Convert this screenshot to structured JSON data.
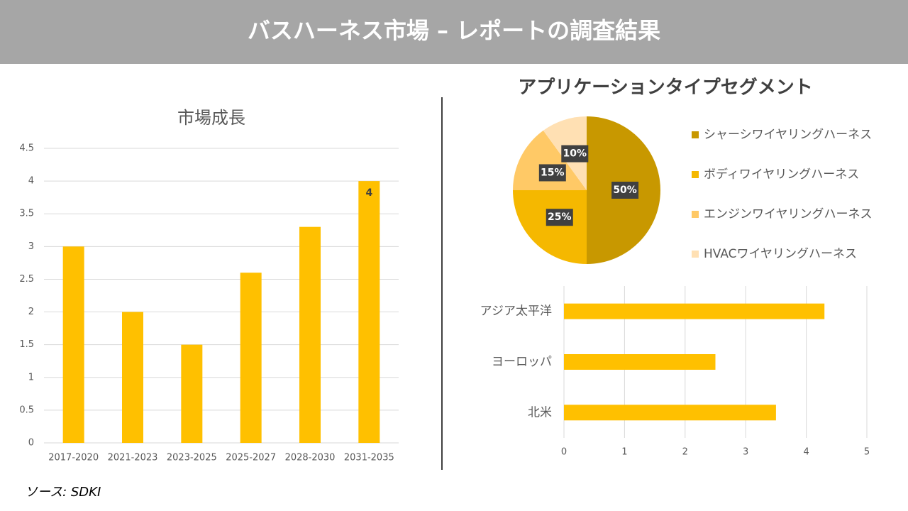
{
  "title": "バスハーネス市場 – レポートの調査結果",
  "source": "ソース: SDKI",
  "chart_data": [
    {
      "type": "bar",
      "title": "市場成長",
      "categories": [
        "2017-2020",
        "2021-2023",
        "2023-2025",
        "2025-2027",
        "2028-2030",
        "2031-2035"
      ],
      "values": [
        3,
        2,
        1.5,
        2.6,
        3.3,
        4
      ],
      "value_labels": [
        null,
        null,
        null,
        null,
        null,
        "4"
      ],
      "color": "#ffc000",
      "ylim": [
        0,
        4.5
      ],
      "yticks": [
        0,
        0.5,
        1,
        1.5,
        2,
        2.5,
        3,
        3.5,
        4,
        4.5
      ],
      "grid": true
    },
    {
      "type": "pie",
      "title": "アプリケーションタイプセグメント",
      "categories": [
        "シャーシワイヤリングハーネス",
        "ボディワイヤリングハーネス",
        "エンジンワイヤリングハーネス",
        "HVACワイヤリングハーネス"
      ],
      "values": [
        50,
        25,
        15,
        10
      ],
      "value_labels": [
        "50%",
        "25%",
        "15%",
        "10%"
      ],
      "colors": [
        "#c89800",
        "#f5b800",
        "#ffc966",
        "#ffe0b3"
      ]
    },
    {
      "type": "hbar",
      "categories": [
        "アジア太平洋",
        "ヨーロッパ",
        "北米"
      ],
      "values": [
        4.3,
        2.5,
        3.5
      ],
      "color": "#ffc000",
      "xlim": [
        0,
        5
      ],
      "xticks": [
        0,
        1,
        2,
        3,
        4,
        5
      ],
      "grid": true
    }
  ]
}
